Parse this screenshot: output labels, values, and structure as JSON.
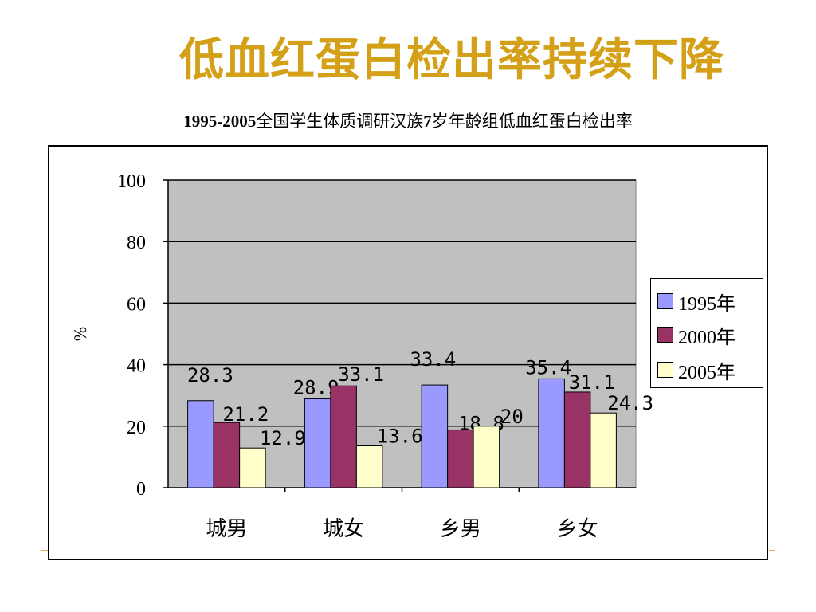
{
  "slide": {
    "title": "低血红蛋白检出率持续下降"
  },
  "chart_data": {
    "type": "bar",
    "title_num": "1995-2005",
    "title_mid": "全国学生体质调研汉族",
    "title_num2": "7",
    "title_end": "岁年龄组低血红蛋白检出率",
    "ylabel": "%",
    "xlabel": "",
    "ylim": [
      0,
      100
    ],
    "yticks": [
      "0",
      "20",
      "40",
      "60",
      "80",
      "100"
    ],
    "grid": true,
    "legend_position": "right",
    "categories": [
      "城男",
      "城女",
      "乡男",
      "乡女"
    ],
    "series": [
      {
        "name": "1995年",
        "color": "#9999ff",
        "values": [
          28.3,
          28.9,
          33.4,
          35.4
        ],
        "labels": [
          "28.3",
          "28.9",
          "33.4",
          "35.4"
        ]
      },
      {
        "name": "2000年",
        "color": "#993366",
        "values": [
          21.2,
          33.1,
          18.8,
          31.1
        ],
        "labels": [
          "21.2",
          "33.1",
          "18.8",
          "31.1"
        ]
      },
      {
        "name": "2005年",
        "color": "#ffffcc",
        "values": [
          12.9,
          13.6,
          20,
          24.3
        ],
        "labels": [
          "12.9",
          "13.6",
          "20",
          "24.3"
        ]
      }
    ],
    "plot_background": "#c0c0c0"
  }
}
